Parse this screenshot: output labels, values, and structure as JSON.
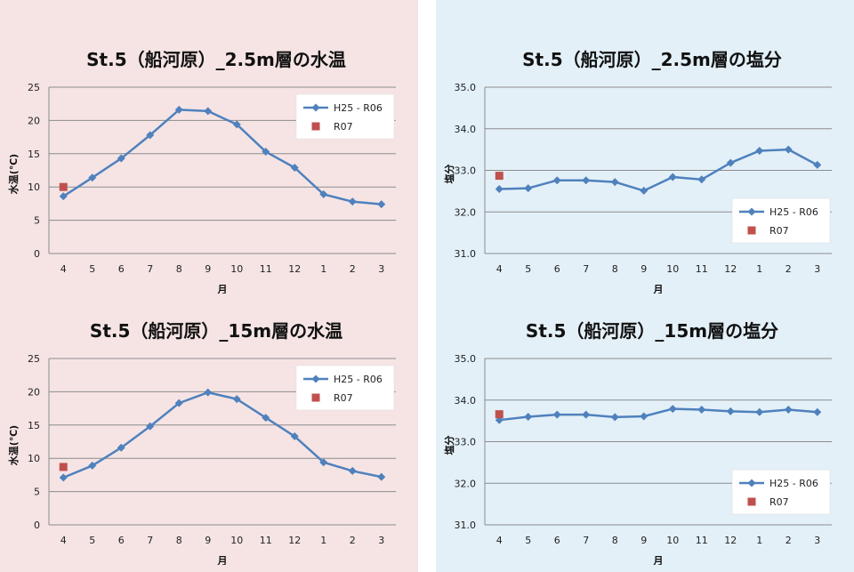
{
  "colors": {
    "series_main": "#4f81bd",
    "series_current": "#c0504d",
    "left_panel_bg": "#f6e4e4",
    "right_panel_bg": "#e3f0f8",
    "grid": "#8c8c8c"
  },
  "chart_data": [
    {
      "type": "line",
      "title": "St.5（船河原）_2.5m層の水温",
      "xlabel": "月",
      "ylabel": "水温(℃)",
      "categories": [
        "4",
        "5",
        "6",
        "7",
        "8",
        "9",
        "10",
        "11",
        "12",
        "1",
        "2",
        "3"
      ],
      "ylim": [
        0,
        25
      ],
      "yticks": [
        "0",
        "5",
        "10",
        "15",
        "20",
        "25"
      ],
      "grid": true,
      "legend": "top-right",
      "series": [
        {
          "name": "H25 - R06",
          "values": [
            8.6,
            11.4,
            14.3,
            17.8,
            21.6,
            21.4,
            19.4,
            15.3,
            12.9,
            8.9,
            7.8,
            7.4
          ]
        },
        {
          "name": "R07",
          "values": [
            10.0,
            null,
            null,
            null,
            null,
            null,
            null,
            null,
            null,
            null,
            null,
            null
          ]
        }
      ]
    },
    {
      "type": "line",
      "title": "St.5（船河原）_2.5m層の塩分",
      "xlabel": "月",
      "ylabel": "塩分",
      "categories": [
        "4",
        "5",
        "6",
        "7",
        "8",
        "9",
        "10",
        "11",
        "12",
        "1",
        "2",
        "3"
      ],
      "ylim": [
        31.0,
        35.0
      ],
      "yticks": [
        "31.0",
        "32.0",
        "33.0",
        "34.0",
        "35.0"
      ],
      "grid": true,
      "legend": "bottom-right",
      "series": [
        {
          "name": "H25 - R06",
          "values": [
            32.55,
            32.57,
            32.76,
            32.76,
            32.72,
            32.51,
            32.84,
            32.78,
            33.18,
            33.47,
            33.5,
            33.13
          ]
        },
        {
          "name": "R07",
          "values": [
            32.87,
            null,
            null,
            null,
            null,
            null,
            null,
            null,
            null,
            null,
            null,
            null
          ]
        }
      ]
    },
    {
      "type": "line",
      "title": "St.5（船河原）_15m層の水温",
      "xlabel": "月",
      "ylabel": "水温(℃)",
      "categories": [
        "4",
        "5",
        "6",
        "7",
        "8",
        "9",
        "10",
        "11",
        "12",
        "1",
        "2",
        "3"
      ],
      "ylim": [
        0,
        25
      ],
      "yticks": [
        "0",
        "5",
        "10",
        "15",
        "20",
        "25"
      ],
      "grid": true,
      "legend": "top-right",
      "series": [
        {
          "name": "H25 - R06",
          "values": [
            7.1,
            8.9,
            11.6,
            14.8,
            18.3,
            19.9,
            18.9,
            16.1,
            13.3,
            9.4,
            8.1,
            7.2
          ]
        },
        {
          "name": "R07",
          "values": [
            8.7,
            null,
            null,
            null,
            null,
            null,
            null,
            null,
            null,
            null,
            null,
            null
          ]
        }
      ]
    },
    {
      "type": "line",
      "title": "St.5（船河原）_15m層の塩分",
      "xlabel": "月",
      "ylabel": "塩分",
      "categories": [
        "4",
        "5",
        "6",
        "7",
        "8",
        "9",
        "10",
        "11",
        "12",
        "1",
        "2",
        "3"
      ],
      "ylim": [
        31.0,
        35.0
      ],
      "yticks": [
        "31.0",
        "32.0",
        "33.0",
        "34.0",
        "35.0"
      ],
      "grid": true,
      "legend": "bottom-right",
      "series": [
        {
          "name": "H25 - R06",
          "values": [
            33.52,
            33.6,
            33.65,
            33.65,
            33.59,
            33.61,
            33.79,
            33.77,
            33.73,
            33.71,
            33.77,
            33.71
          ]
        },
        {
          "name": "R07",
          "values": [
            33.66,
            null,
            null,
            null,
            null,
            null,
            null,
            null,
            null,
            null,
            null,
            null
          ]
        }
      ]
    }
  ]
}
